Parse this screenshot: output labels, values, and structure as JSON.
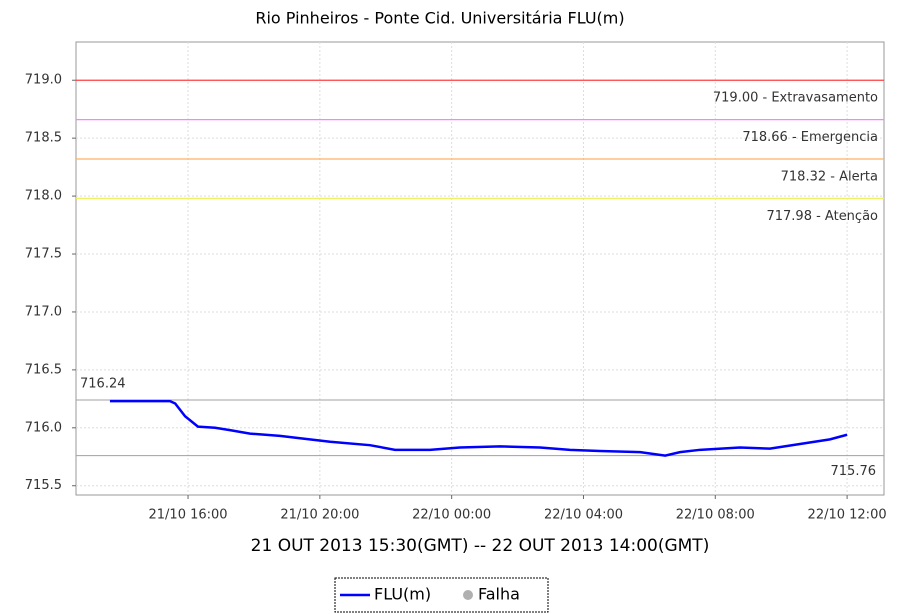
{
  "chart_data": {
    "type": "line",
    "title": "Rio Pinheiros - Ponte Cid. Universitária FLU(m)",
    "x_label": "21 OUT 2013 15:30(GMT) -- 22 OUT 2013 14:00(GMT)",
    "x": [
      13.63,
      14.54,
      15.45,
      15.61,
      15.91,
      16.3,
      16.82,
      17.27,
      17.88,
      18.79,
      19.4,
      20.31,
      21.52,
      22.28,
      23.34,
      24.25,
      25.47,
      26.68,
      27.59,
      28.5,
      29.72,
      30.48,
      30.93,
      31.54,
      32.75,
      33.66,
      34.57,
      35.48,
      36.0
    ],
    "series": [
      {
        "name": "FLU(m)",
        "color": "#0000ff",
        "values": [
          716.23,
          716.23,
          716.23,
          716.21,
          716.1,
          716.01,
          716.0,
          715.98,
          715.95,
          715.93,
          715.91,
          715.88,
          715.85,
          715.81,
          715.81,
          715.83,
          715.84,
          715.83,
          715.81,
          715.8,
          715.79,
          715.76,
          715.79,
          715.81,
          715.83,
          715.82,
          715.86,
          715.9,
          715.94
        ]
      }
    ],
    "failure_marker": {
      "name": "Falha",
      "color": "#b0b0b0"
    },
    "xlim": [
      12.6,
      37.12
    ],
    "xticks": [
      {
        "value": 16,
        "label": "21/10 16:00"
      },
      {
        "value": 20,
        "label": "21/10 20:00"
      },
      {
        "value": 24,
        "label": "22/10 00:00"
      },
      {
        "value": 28,
        "label": "22/10 04:00"
      },
      {
        "value": 32,
        "label": "22/10 08:00"
      },
      {
        "value": 36,
        "label": "22/10 12:00"
      }
    ],
    "ylim": [
      715.42,
      719.33
    ],
    "yticks": [
      715.5,
      {
        "value": 716,
        "label": "716.0"
      },
      716.5,
      {
        "value": 717,
        "label": "717.0"
      },
      717.5,
      {
        "value": 718,
        "label": "718.0"
      },
      718.5,
      {
        "value": 719,
        "label": "719.0"
      }
    ],
    "grid": true,
    "thresholds": [
      {
        "value": 719.0,
        "label": "719.00 - Extravasamento",
        "color": "#ff4040"
      },
      {
        "value": 718.66,
        "label": "718.66 - Emergencia",
        "color": "#ff80ff"
      },
      {
        "value": 718.32,
        "label": "718.32 - Alerta",
        "color": "#ffb060"
      },
      {
        "value": 717.98,
        "label": "717.98 - Atenção",
        "color": "#f0f060"
      }
    ],
    "max_line": {
      "value": 716.24,
      "color": "#a0a0a0"
    },
    "min_line": {
      "value": 715.76,
      "color": "#a0a0a0"
    }
  }
}
